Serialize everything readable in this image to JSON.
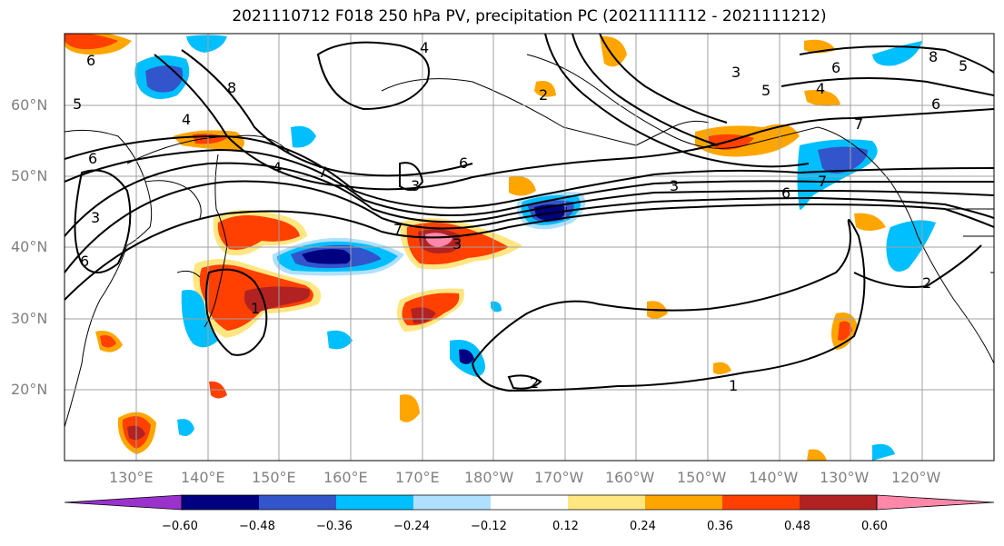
{
  "title": "2021110712 F018 250 hPa PV, precipitation PC (2021111112 - 2021111212)",
  "map": {
    "lat_labels": [
      "20°N",
      "30°N",
      "40°N",
      "50°N",
      "60°N"
    ],
    "lon_labels": [
      "130°E",
      "140°E",
      "150°E",
      "160°E",
      "170°E",
      "180°W",
      "170°W",
      "160°W",
      "150°W",
      "140°W",
      "130°W",
      "120°W"
    ],
    "pv_contour_labels": [
      "1",
      "2",
      "3",
      "4",
      "5",
      "6",
      "7",
      "8"
    ]
  },
  "colorbar": {
    "tick_labels": [
      "−0.60",
      "−0.48",
      "−0.36",
      "−0.24",
      "−0.12",
      "0.12",
      "0.24",
      "0.36",
      "0.48",
      "0.60"
    ],
    "colors": [
      "#9933cc",
      "#000080",
      "#3355cc",
      "#00bfff",
      "#b0e0ff",
      "#ffffff",
      "#ffe680",
      "#ffa500",
      "#ff4000",
      "#b22222",
      "#ff88aa"
    ]
  }
}
